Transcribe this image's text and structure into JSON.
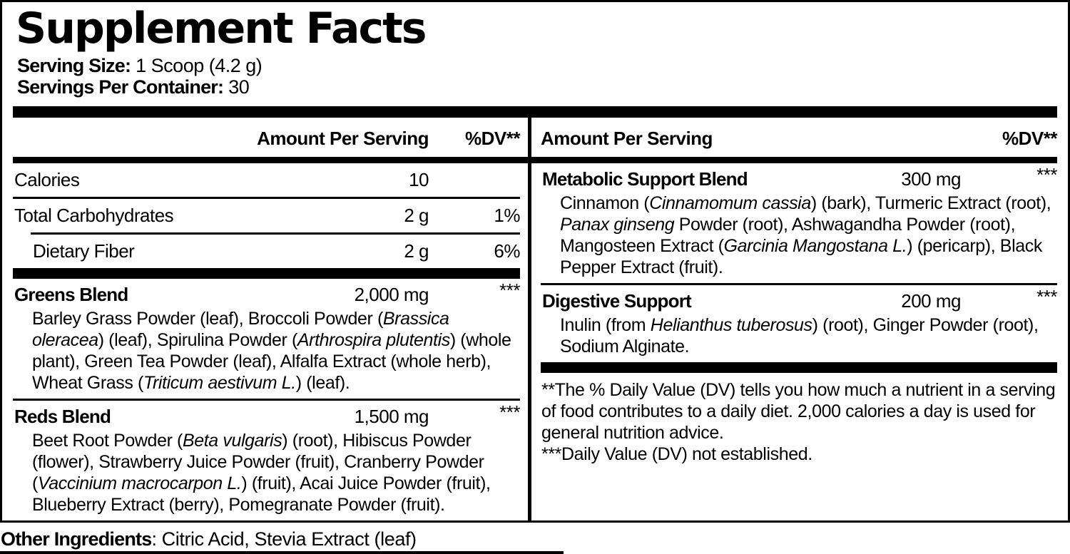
{
  "colors": {
    "text": "#000000",
    "background": "#ffffff"
  },
  "title": "Supplement Facts",
  "serving": {
    "size_label": "Serving Size:",
    "size_value": " 1 Scoop (4.2 g)",
    "container_label": "Servings Per Container:",
    "container_value": " 30"
  },
  "left_column": {
    "header": {
      "amount": "Amount Per Serving",
      "dv": "%DV**"
    },
    "nutrients": [
      {
        "name": "Calories",
        "amount": "10",
        "dv": ""
      },
      {
        "name": "Total Carbohydrates",
        "amount": "2 g",
        "dv": "1%"
      },
      {
        "name": "Dietary Fiber",
        "amount": "2 g",
        "dv": "6%"
      }
    ],
    "blends": [
      {
        "name": "Greens Blend",
        "amount": "2,000 mg",
        "dv": "***",
        "description": [
          {
            "t": "Barley Grass Powder (leaf), Broccoli Powder ("
          },
          {
            "t": "Brassica oleracea",
            "i": true
          },
          {
            "t": ") (leaf), Spirulina Powder ("
          },
          {
            "t": "Arthrospira plutentis",
            "i": true
          },
          {
            "t": ") (whole plant), Green Tea Powder (leaf), Alfalfa Extract (whole herb), Wheat Grass ("
          },
          {
            "t": "Triticum aestivum L.",
            "i": true
          },
          {
            "t": ") (leaf)."
          }
        ]
      },
      {
        "name": "Reds Blend",
        "amount": "1,500 mg",
        "dv": "***",
        "description": [
          {
            "t": "Beet Root Powder ("
          },
          {
            "t": "Beta vulgaris",
            "i": true
          },
          {
            "t": ") (root), Hibiscus Powder (flower), Strawberry Juice Powder (fruit), Cranberry Powder ("
          },
          {
            "t": "Vaccinium macrocarpon L.",
            "i": true
          },
          {
            "t": ") (fruit), Acai Juice Powder (fruit), Blueberry Extract (berry), Pomegranate Powder (fruit)."
          }
        ]
      }
    ]
  },
  "right_column": {
    "header": {
      "amount": "Amount Per Serving",
      "dv": "%DV**"
    },
    "blends": [
      {
        "name": "Metabolic Support Blend",
        "amount": "300 mg",
        "dv": "***",
        "description": [
          {
            "t": "Cinnamon ("
          },
          {
            "t": "Cinnamomum cassia",
            "i": true
          },
          {
            "t": ") (bark), Turmeric Extract (root), "
          },
          {
            "t": "Panax ginseng",
            "i": true
          },
          {
            "t": " Powder (root), Ashwagandha Powder (root), Mangosteen Extract ("
          },
          {
            "t": "Garcinia Mangostana L.",
            "i": true
          },
          {
            "t": ") (pericarp), Black Pepper Extract (fruit)."
          }
        ]
      },
      {
        "name": "Digestive Support",
        "amount": "200 mg",
        "dv": "***",
        "description": [
          {
            "t": "Inulin (from "
          },
          {
            "t": "Helianthus tuberosus",
            "i": true
          },
          {
            "t": ") (root), Ginger Powder (root), Sodium Alginate."
          }
        ]
      }
    ],
    "footnotes": [
      "**The % Daily Value (DV) tells you how much a nutrient in a serving of food contributes to a daily diet. 2,000 calories a day is used for general nutrition advice.",
      "***Daily Value (DV) not established."
    ]
  },
  "other_ingredients": {
    "label": "Other Ingredients",
    "value": ": Citric Acid, Stevia Extract (leaf)"
  }
}
